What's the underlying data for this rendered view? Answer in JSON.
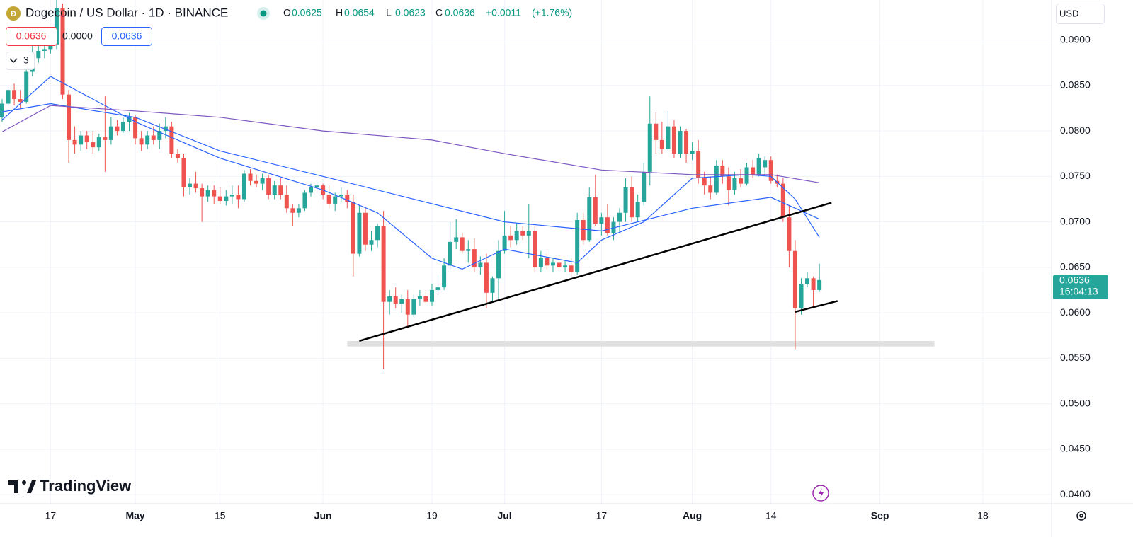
{
  "ui": {
    "symbol": "Dogecoin / US Dollar · 1D · BINANCE",
    "ohlc_labels": [
      "O",
      "H",
      "L",
      "C"
    ],
    "change": "+0.0011",
    "change_pct": "(+1.76%)",
    "indicator_values": [
      "0.0636",
      "0.0000",
      "0.0636"
    ],
    "collapsed_count": "3",
    "currency": "USD",
    "countdown": "16:04:13",
    "brand": "TradingView"
  },
  "chart_data": {
    "type": "candlestick",
    "up_color": "#26a69a",
    "down_color": "#ef5350",
    "grid": true,
    "x": [
      "04-09",
      "04-10",
      "04-11",
      "04-12",
      "04-13",
      "04-14",
      "04-15",
      "04-16",
      "04-17",
      "04-18",
      "04-19",
      "04-20",
      "04-21",
      "04-22",
      "04-23",
      "04-24",
      "04-25",
      "04-26",
      "04-27",
      "04-28",
      "04-29",
      "04-30",
      "05-01",
      "05-02",
      "05-03",
      "05-04",
      "05-05",
      "05-06",
      "05-07",
      "05-08",
      "05-09",
      "05-10",
      "05-11",
      "05-12",
      "05-13",
      "05-14",
      "05-15",
      "05-16",
      "05-17",
      "05-18",
      "05-19",
      "05-20",
      "05-21",
      "05-22",
      "05-23",
      "05-24",
      "05-25",
      "05-26",
      "05-27",
      "05-28",
      "05-29",
      "05-30",
      "05-31",
      "06-01",
      "06-02",
      "06-03",
      "06-04",
      "06-05",
      "06-06",
      "06-07",
      "06-08",
      "06-09",
      "06-10",
      "06-11",
      "06-12",
      "06-13",
      "06-14",
      "06-15",
      "06-16",
      "06-17",
      "06-18",
      "06-19",
      "06-20",
      "06-21",
      "06-22",
      "06-23",
      "06-24",
      "06-25",
      "06-26",
      "06-27",
      "06-28",
      "06-29",
      "06-30",
      "07-01",
      "07-02",
      "07-03",
      "07-04",
      "07-05",
      "07-06",
      "07-07",
      "07-08",
      "07-09",
      "07-10",
      "07-11",
      "07-12",
      "07-13",
      "07-14",
      "07-15",
      "07-16",
      "07-17",
      "07-18",
      "07-19",
      "07-20",
      "07-21",
      "07-22",
      "07-23",
      "07-24",
      "07-25",
      "07-26",
      "07-27",
      "07-28",
      "07-29",
      "07-30",
      "07-31",
      "08-01",
      "08-02",
      "08-03",
      "08-04",
      "08-05",
      "08-06",
      "08-07",
      "08-08",
      "08-09",
      "08-10",
      "08-11",
      "08-12",
      "08-13",
      "08-14",
      "08-15",
      "08-16",
      "08-17",
      "08-18",
      "08-19",
      "08-20",
      "08-21",
      "08-22"
    ],
    "open": [
      0.0815,
      0.083,
      0.0845,
      0.0835,
      0.0832,
      0.0865,
      0.088,
      0.0888,
      0.089,
      0.0895,
      0.0935,
      0.084,
      0.079,
      0.0785,
      0.0795,
      0.0788,
      0.0782,
      0.0793,
      0.079,
      0.0805,
      0.08,
      0.081,
      0.0815,
      0.0792,
      0.0785,
      0.0795,
      0.079,
      0.08,
      0.0805,
      0.0775,
      0.077,
      0.0738,
      0.0742,
      0.0737,
      0.0728,
      0.0735,
      0.0728,
      0.0723,
      0.0728,
      0.073,
      0.0725,
      0.0753,
      0.0745,
      0.0742,
      0.0748,
      0.073,
      0.074,
      0.073,
      0.0715,
      0.071,
      0.0715,
      0.0732,
      0.0738,
      0.074,
      0.073,
      0.072,
      0.0728,
      0.073,
      0.0722,
      0.0665,
      0.071,
      0.0675,
      0.068,
      0.0695,
      0.0612,
      0.0618,
      0.061,
      0.0615,
      0.0598,
      0.0615,
      0.0618,
      0.0612,
      0.0625,
      0.0628,
      0.0652,
      0.0678,
      0.0683,
      0.0668,
      0.067,
      0.065,
      0.0655,
      0.0622,
      0.0638,
      0.0668,
      0.0685,
      0.068,
      0.069,
      0.0685,
      0.069,
      0.065,
      0.066,
      0.0652,
      0.0655,
      0.065,
      0.0652,
      0.0645,
      0.0702,
      0.068,
      0.0727,
      0.0698,
      0.0705,
      0.0688,
      0.07,
      0.071,
      0.0738,
      0.0705,
      0.0722,
      0.0755,
      0.0808,
      0.079,
      0.078,
      0.0805,
      0.0775,
      0.08,
      0.0775,
      0.0778,
      0.0748,
      0.074,
      0.0732,
      0.0762,
      0.075,
      0.0735,
      0.0748,
      0.0742,
      0.076,
      0.0752,
      0.076,
      0.0768,
      0.0745,
      0.0742,
      0.0705,
      0.0668,
      0.0605,
      0.0632,
      0.0638,
      0.0625
    ],
    "high": [
      0.0835,
      0.085,
      0.0852,
      0.0845,
      0.087,
      0.0895,
      0.0895,
      0.09,
      0.091,
      0.099,
      0.094,
      0.0845,
      0.0805,
      0.08,
      0.08,
      0.08,
      0.0797,
      0.0838,
      0.0815,
      0.0812,
      0.0815,
      0.082,
      0.0818,
      0.08,
      0.08,
      0.0805,
      0.0808,
      0.0815,
      0.081,
      0.078,
      0.0775,
      0.0748,
      0.0755,
      0.0742,
      0.074,
      0.074,
      0.0738,
      0.0735,
      0.074,
      0.074,
      0.0757,
      0.0758,
      0.0752,
      0.0753,
      0.0752,
      0.0745,
      0.0748,
      0.074,
      0.072,
      0.072,
      0.0735,
      0.0742,
      0.0745,
      0.0742,
      0.074,
      0.0732,
      0.0738,
      0.0735,
      0.073,
      0.0718,
      0.0715,
      0.069,
      0.0698,
      0.0712,
      0.0625,
      0.0628,
      0.062,
      0.0625,
      0.062,
      0.0625,
      0.0625,
      0.0632,
      0.064,
      0.066,
      0.07,
      0.0703,
      0.0688,
      0.068,
      0.0682,
      0.0662,
      0.0665,
      0.064,
      0.068,
      0.0712,
      0.0695,
      0.0698,
      0.0695,
      0.072,
      0.0695,
      0.0668,
      0.0665,
      0.066,
      0.0662,
      0.0658,
      0.066,
      0.071,
      0.071,
      0.0738,
      0.0752,
      0.071,
      0.072,
      0.0705,
      0.0715,
      0.0748,
      0.075,
      0.073,
      0.0765,
      0.0838,
      0.082,
      0.081,
      0.0822,
      0.0812,
      0.0805,
      0.0802,
      0.0788,
      0.079,
      0.0755,
      0.075,
      0.0768,
      0.0768,
      0.076,
      0.0755,
      0.0758,
      0.0765,
      0.0768,
      0.0775,
      0.0772,
      0.0772,
      0.0752,
      0.0748,
      0.0718,
      0.068,
      0.0638,
      0.0645,
      0.064,
      0.0654
    ],
    "low": [
      0.081,
      0.0825,
      0.0828,
      0.0825,
      0.083,
      0.086,
      0.0875,
      0.088,
      0.0885,
      0.089,
      0.0835,
      0.0765,
      0.0775,
      0.0778,
      0.078,
      0.0775,
      0.0778,
      0.0755,
      0.0785,
      0.0795,
      0.0798,
      0.08,
      0.0785,
      0.0778,
      0.078,
      0.0785,
      0.078,
      0.0792,
      0.077,
      0.0765,
      0.0728,
      0.073,
      0.0732,
      0.07,
      0.0722,
      0.072,
      0.072,
      0.0718,
      0.072,
      0.0715,
      0.0722,
      0.074,
      0.0738,
      0.0735,
      0.0725,
      0.0725,
      0.0725,
      0.071,
      0.0695,
      0.0705,
      0.0712,
      0.0728,
      0.0732,
      0.0725,
      0.0715,
      0.0712,
      0.0722,
      0.0715,
      0.064,
      0.0662,
      0.0668,
      0.0668,
      0.0672,
      0.0538,
      0.0598,
      0.0605,
      0.06,
      0.0585,
      0.0595,
      0.0608,
      0.061,
      0.0608,
      0.062,
      0.0625,
      0.0648,
      0.067,
      0.0665,
      0.0655,
      0.0645,
      0.0642,
      0.0605,
      0.0612,
      0.0615,
      0.0665,
      0.0672,
      0.0675,
      0.068,
      0.066,
      0.0645,
      0.0645,
      0.0648,
      0.0645,
      0.0648,
      0.0645,
      0.064,
      0.0642,
      0.0675,
      0.0678,
      0.0695,
      0.0685,
      0.0685,
      0.068,
      0.0688,
      0.07,
      0.07,
      0.07,
      0.0718,
      0.074,
      0.0775,
      0.0775,
      0.0778,
      0.077,
      0.077,
      0.0765,
      0.0768,
      0.0742,
      0.073,
      0.0725,
      0.073,
      0.0742,
      0.0718,
      0.073,
      0.0738,
      0.074,
      0.0748,
      0.075,
      0.0752,
      0.0742,
      0.0738,
      0.07,
      0.065,
      0.056,
      0.0598,
      0.0628,
      0.0605,
      0.0623
    ],
    "close": [
      0.083,
      0.0845,
      0.0835,
      0.0832,
      0.0865,
      0.088,
      0.0888,
      0.089,
      0.0895,
      0.0935,
      0.084,
      0.079,
      0.0785,
      0.0795,
      0.0788,
      0.0782,
      0.0793,
      0.079,
      0.0805,
      0.08,
      0.081,
      0.0815,
      0.0792,
      0.0785,
      0.0795,
      0.079,
      0.08,
      0.0805,
      0.0775,
      0.077,
      0.0738,
      0.0742,
      0.0737,
      0.0728,
      0.0735,
      0.0728,
      0.0723,
      0.0728,
      0.073,
      0.0725,
      0.0753,
      0.0745,
      0.0742,
      0.0748,
      0.073,
      0.074,
      0.073,
      0.0715,
      0.071,
      0.0715,
      0.0732,
      0.0738,
      0.074,
      0.073,
      0.072,
      0.0728,
      0.073,
      0.0722,
      0.0665,
      0.071,
      0.0675,
      0.068,
      0.0695,
      0.0612,
      0.0618,
      0.061,
      0.0615,
      0.0598,
      0.0615,
      0.0618,
      0.0612,
      0.0625,
      0.0628,
      0.0652,
      0.0678,
      0.0683,
      0.0668,
      0.067,
      0.065,
      0.0655,
      0.0622,
      0.0638,
      0.0668,
      0.0685,
      0.068,
      0.069,
      0.0685,
      0.069,
      0.065,
      0.066,
      0.0652,
      0.0655,
      0.065,
      0.0652,
      0.0645,
      0.0702,
      0.068,
      0.0727,
      0.0698,
      0.0705,
      0.0688,
      0.07,
      0.071,
      0.0738,
      0.0705,
      0.0722,
      0.0755,
      0.0808,
      0.079,
      0.078,
      0.0805,
      0.0775,
      0.08,
      0.0775,
      0.0778,
      0.0748,
      0.074,
      0.0732,
      0.0762,
      0.075,
      0.0735,
      0.0748,
      0.0742,
      0.076,
      0.0752,
      0.077,
      0.0768,
      0.0745,
      0.0742,
      0.0705,
      0.0668,
      0.0605,
      0.0632,
      0.0638,
      0.0625,
      0.0636
    ],
    "moving_averages": [
      {
        "color": "#2962ff",
        "x": [
          "04-09",
          "04-17",
          "04-24",
          "05-01",
          "05-15",
          "06-01",
          "06-10",
          "06-19",
          "06-24",
          "07-01",
          "07-13",
          "07-17",
          "07-24",
          "08-01",
          "08-10",
          "08-14",
          "08-18",
          "08-22"
        ],
        "values": [
          0.0812,
          0.086,
          0.0835,
          0.081,
          0.077,
          0.0735,
          0.071,
          0.066,
          0.0648,
          0.067,
          0.0655,
          0.068,
          0.07,
          0.0748,
          0.0752,
          0.075,
          0.0725,
          0.0683
        ]
      },
      {
        "color": "#2962ff",
        "x": [
          "04-09",
          "04-17",
          "05-01",
          "05-15",
          "06-01",
          "06-19",
          "07-01",
          "07-17",
          "08-01",
          "08-14",
          "08-22"
        ],
        "values": [
          0.0821,
          0.083,
          0.0815,
          0.0778,
          0.075,
          0.072,
          0.07,
          0.069,
          0.0715,
          0.0727,
          0.0703
        ]
      },
      {
        "color": "#7e57c2",
        "x": [
          "04-09",
          "04-17",
          "05-01",
          "05-15",
          "06-01",
          "06-19",
          "07-01",
          "07-17",
          "08-01",
          "08-14",
          "08-22"
        ],
        "values": [
          0.0799,
          0.0828,
          0.0822,
          0.0815,
          0.08,
          0.079,
          0.0775,
          0.0757,
          0.0752,
          0.0752,
          0.0743
        ]
      }
    ],
    "drawings": [
      {
        "color": "#000000",
        "x": [
          "06-07",
          "08-24"
        ],
        "values": [
          0.0569,
          0.0721
        ]
      },
      {
        "color": "#000000",
        "x": [
          "08-18",
          "08-25"
        ],
        "values": [
          0.0601,
          0.0613
        ]
      }
    ],
    "zone": {
      "color": "#e0e0e0",
      "x": [
        "06-05",
        "09-10"
      ],
      "values": [
        0.0569,
        0.0563
      ]
    },
    "xlim": [
      "04-09",
      "09-29"
    ],
    "ylim": [
      0.039,
      0.0944
    ],
    "xticks": [
      {
        "value": "04-17",
        "label": "17"
      },
      {
        "value": "05-01",
        "label": "May"
      },
      {
        "value": "05-15",
        "label": "15"
      },
      {
        "value": "06-01",
        "label": "Jun"
      },
      {
        "value": "06-19",
        "label": "19"
      },
      {
        "value": "07-01",
        "label": "Jul"
      },
      {
        "value": "07-17",
        "label": "17"
      },
      {
        "value": "08-01",
        "label": "Aug"
      },
      {
        "value": "08-14",
        "label": "14"
      },
      {
        "value": "09-01",
        "label": "Sep"
      },
      {
        "value": "09-18",
        "label": "18"
      }
    ],
    "yticks": [
      {
        "value": 0.04,
        "label": "0.0400"
      },
      {
        "value": 0.045,
        "label": "0.0450"
      },
      {
        "value": 0.05,
        "label": "0.0500"
      },
      {
        "value": 0.055,
        "label": "0.0550"
      },
      {
        "value": 0.06,
        "label": "0.0600"
      },
      {
        "value": 0.065,
        "label": "0.0650"
      },
      {
        "value": 0.07,
        "label": "0.0700"
      },
      {
        "value": 0.075,
        "label": "0.0750"
      },
      {
        "value": 0.08,
        "label": "0.0800"
      },
      {
        "value": 0.085,
        "label": "0.0850"
      },
      {
        "value": 0.09,
        "label": "0.0900"
      }
    ]
  }
}
